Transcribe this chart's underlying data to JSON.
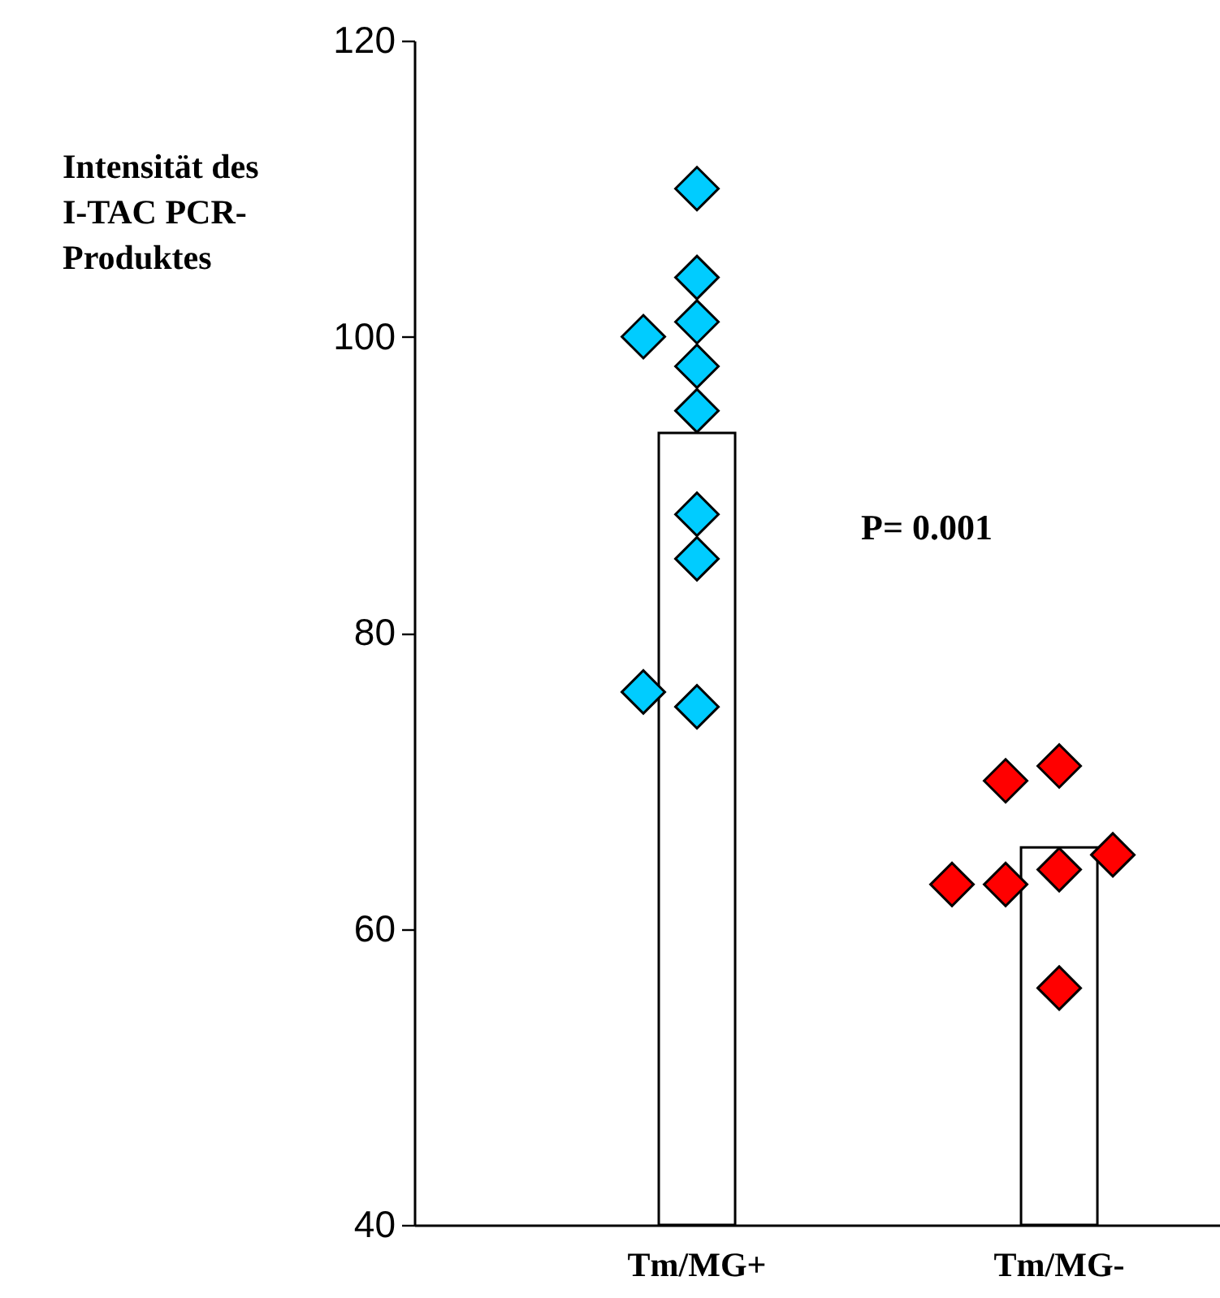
{
  "chart_data": {
    "type": "bar",
    "ylabel": "Intensität des I-TAC PCR-Produktes",
    "categories": [
      "Tm/MG+",
      "Tm/MG-"
    ],
    "series": [
      {
        "color": "#ffffff",
        "values": [
          93.5,
          65.5
        ]
      },
      {
        "type": "scatter",
        "color": "#00ccff",
        "x": [
          "Tm/MG+",
          "Tm/MG+",
          "Tm/MG+",
          "Tm/MG+",
          "Tm/MG+",
          "Tm/MG+",
          "Tm/MG+",
          "Tm/MG+",
          "Tm/MG+",
          "Tm/MG+"
        ],
        "values": [
          110,
          104,
          101,
          95,
          88,
          85,
          75,
          100,
          98,
          76
        ]
      },
      {
        "type": "scatter",
        "color": "#ff0000",
        "x": [
          "Tm/MG-",
          "Tm/MG-",
          "Tm/MG-",
          "Tm/MG-",
          "Tm/MG-",
          "Tm/MG-",
          "Tm/MG-"
        ],
        "values": [
          71,
          70,
          64,
          63,
          65,
          63,
          56
        ]
      }
    ],
    "ylim": [
      40,
      120
    ],
    "yticks": [
      40,
      60,
      80,
      100,
      120
    ],
    "marker": "diamond",
    "annotations": [
      "P= 0.001"
    ]
  }
}
